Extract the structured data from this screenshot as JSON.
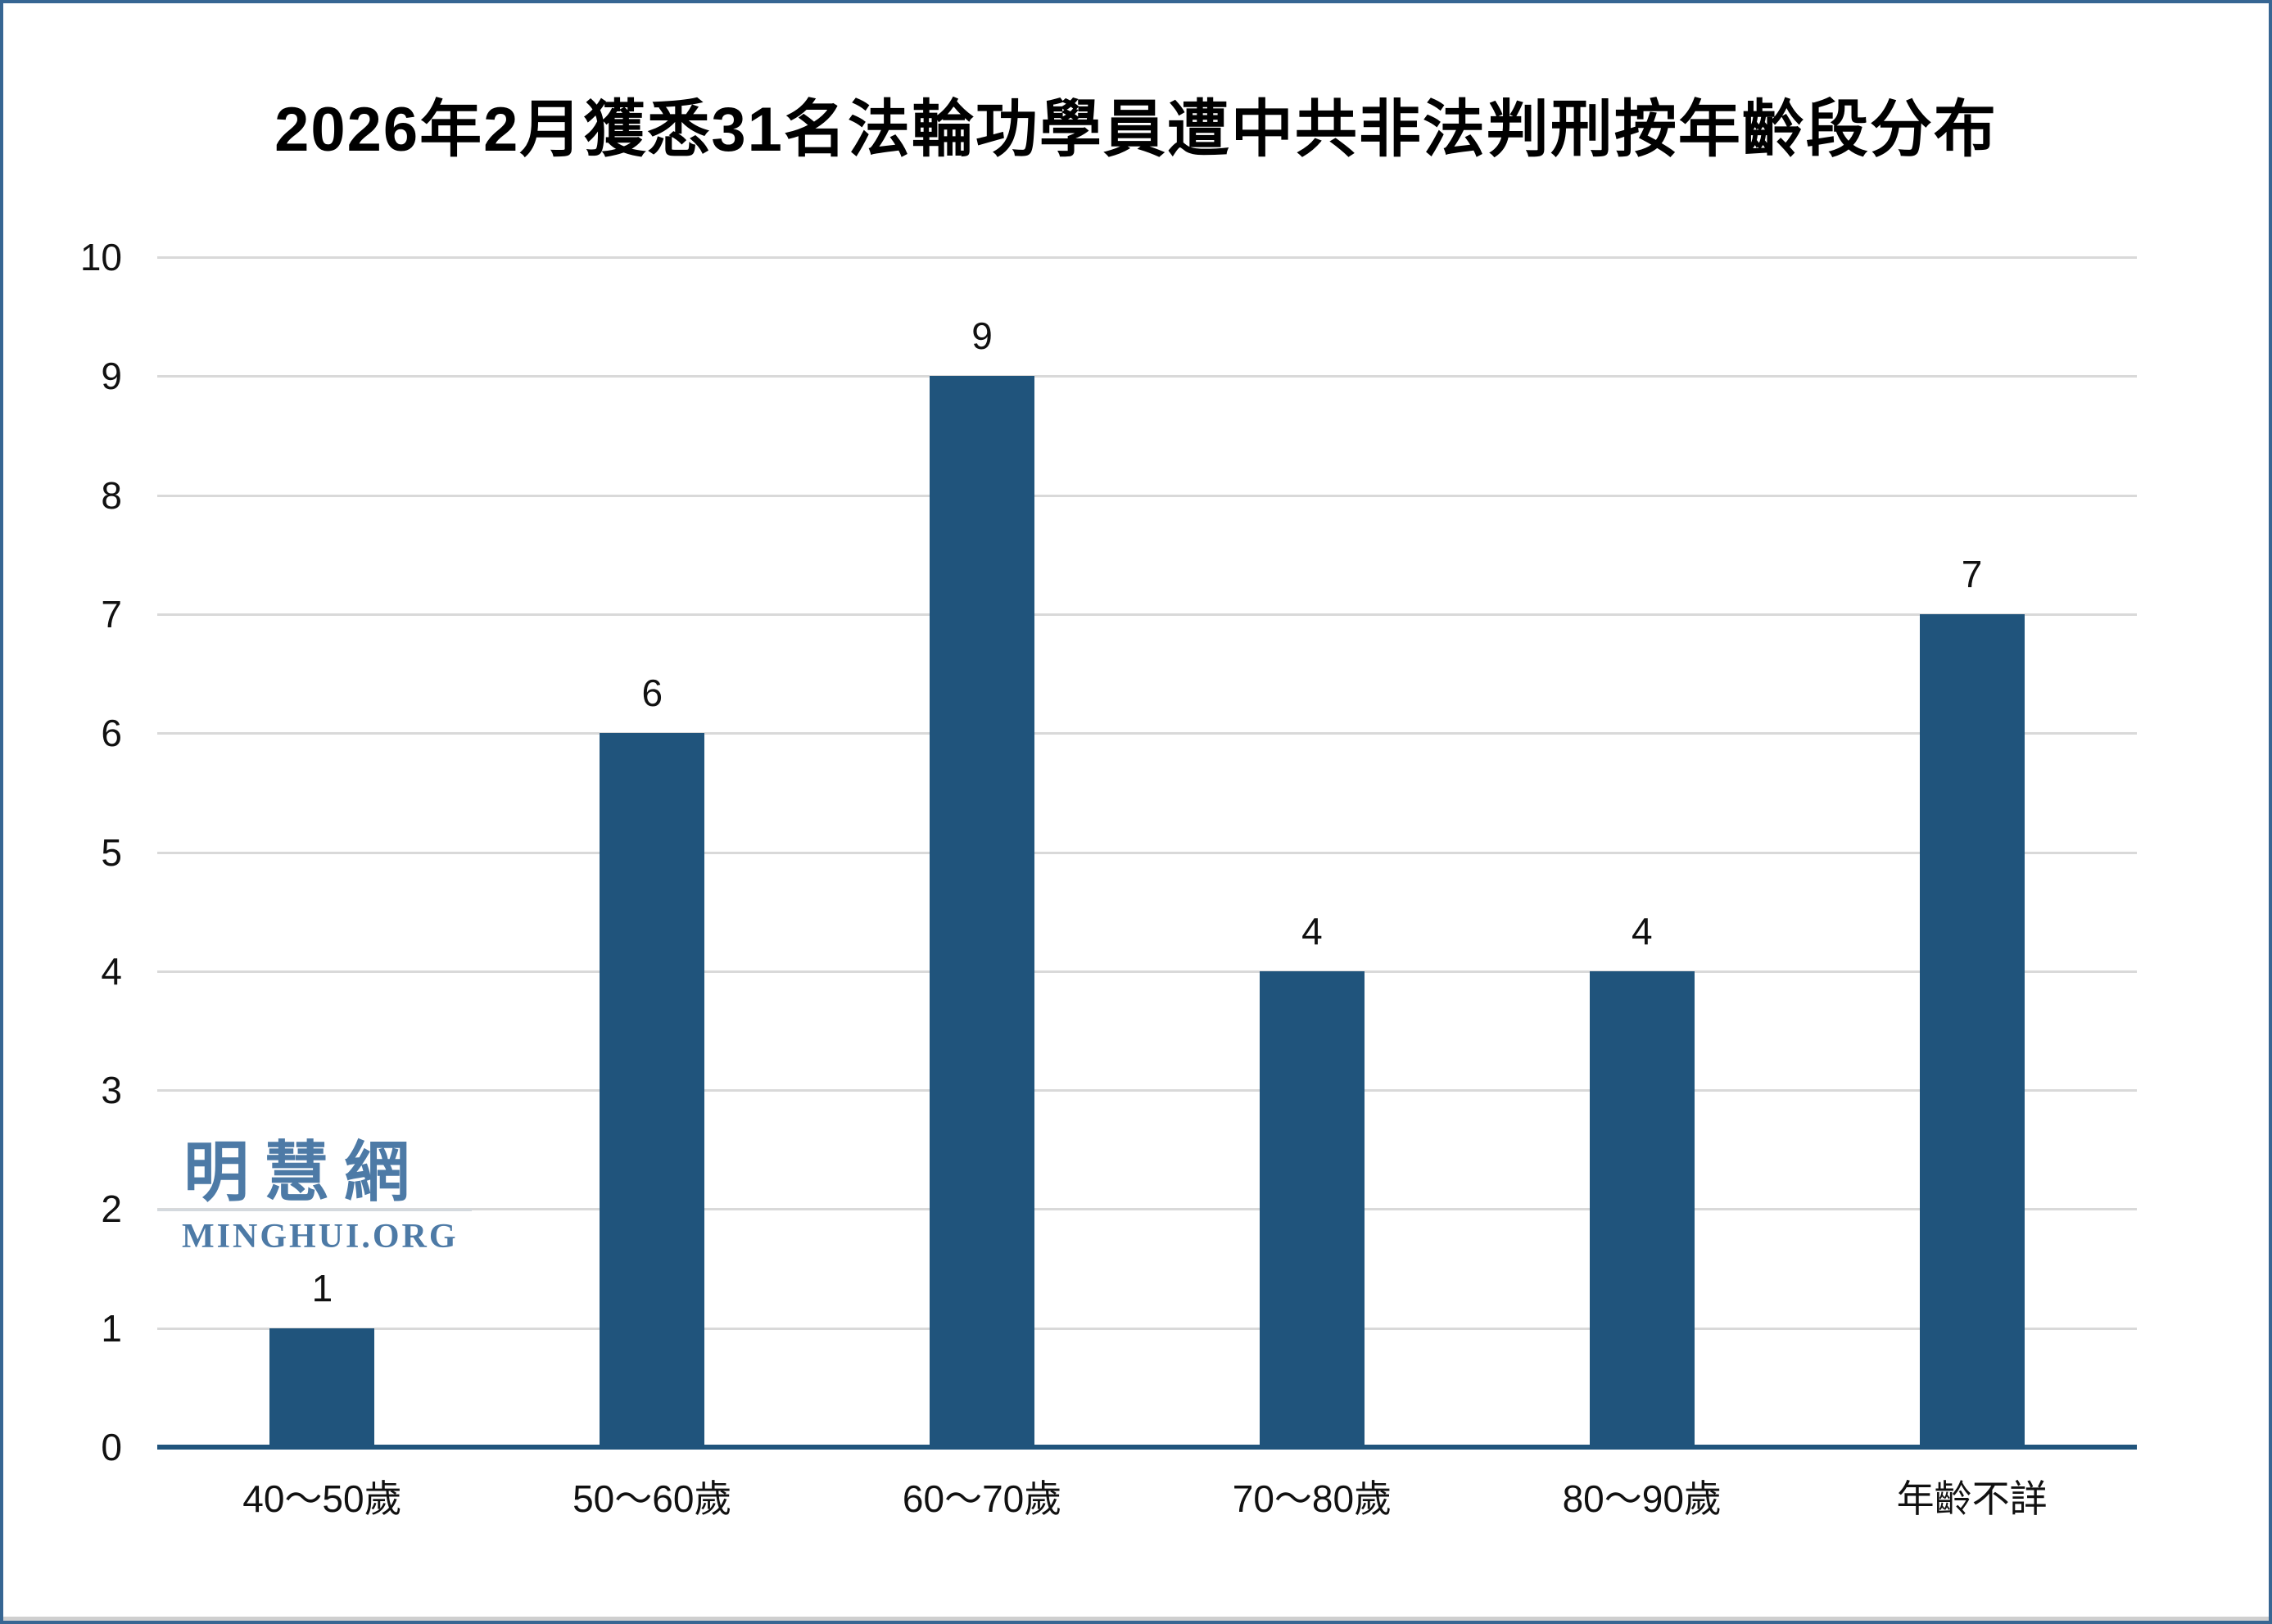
{
  "title": "2026年2月獲悉31名法輪功學員遭中共非法判刑按年齡段分布",
  "watermark": {
    "cjk": "明慧網",
    "latin": "MINGHUI.ORG"
  },
  "colors": {
    "bar": "#20547C",
    "axis_line": "#20547C",
    "gridline": "#D9D9D9",
    "page_border": "#376693",
    "watermark_text": "#4D7AA6",
    "watermark_divider": "#D4D9DE",
    "label_text": "#111111",
    "background": "#FFFFFF"
  },
  "chart_data": {
    "type": "bar",
    "title": "2026年2月獲悉31名法輪功學員遭中共非法判刑按年齡段分布",
    "categories": [
      "40～50歲",
      "50～60歲",
      "60～70歲",
      "70～80歲",
      "80～90歲",
      "年齡不詳"
    ],
    "values": [
      1,
      6,
      9,
      4,
      4,
      7
    ],
    "data_labels": [
      "1",
      "6",
      "9",
      "4",
      "4",
      "7"
    ],
    "xlabel": "",
    "ylabel": "",
    "ylim": [
      0,
      10
    ],
    "yticks": [
      0,
      1,
      2,
      3,
      4,
      5,
      6,
      7,
      8,
      9,
      10
    ],
    "grid": true,
    "legend": false,
    "bar_color": "#20547C",
    "total": 31
  }
}
